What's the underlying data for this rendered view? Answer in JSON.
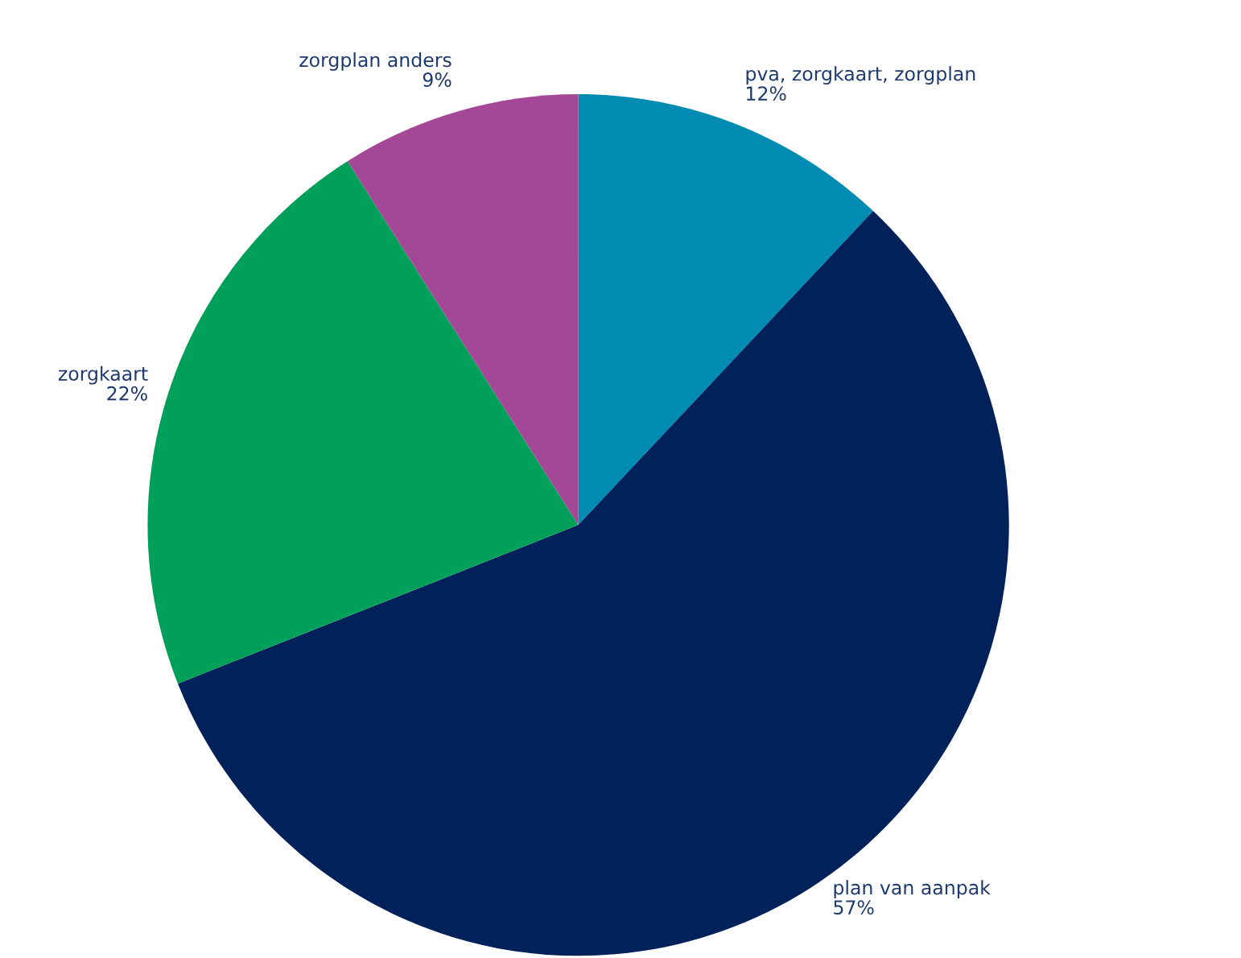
{
  "chart_data": {
    "type": "pie",
    "categories": [
      "pva, zorgkaart, zorgplan",
      "plan van aanpak",
      "zorgkaart",
      "zorgplan anders"
    ],
    "values": [
      12,
      57,
      22,
      9
    ],
    "colors": [
      "#008bb3",
      "#00215a",
      "#00a05a",
      "#a34796"
    ],
    "value_labels": [
      "12%",
      "57%",
      "22%",
      "9%"
    ]
  }
}
